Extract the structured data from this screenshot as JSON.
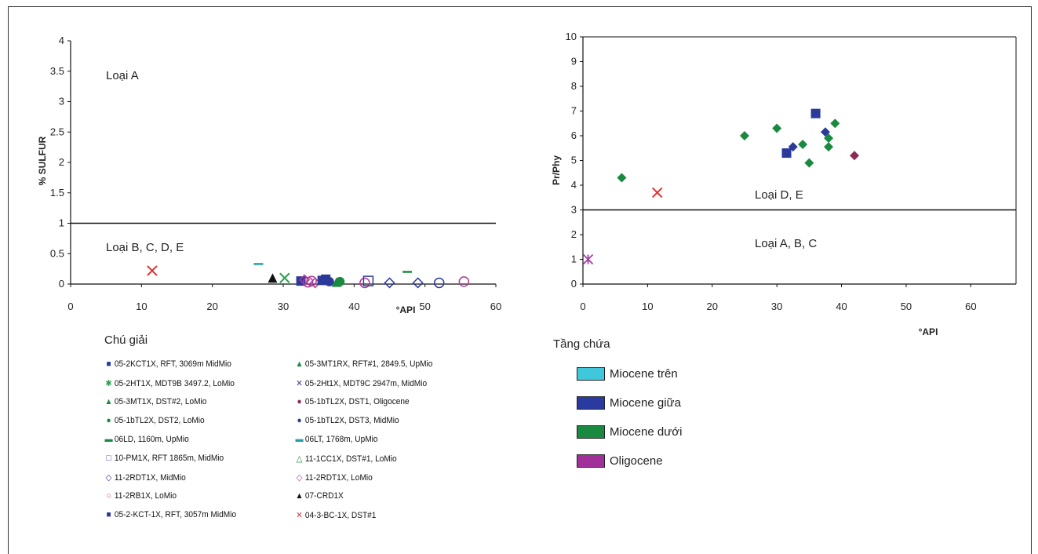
{
  "chart_data": [
    {
      "type": "scatter",
      "xlabel": "°API",
      "ylabel": "% SULFUR",
      "xlim": [
        0,
        60
      ],
      "ylim": [
        0,
        4
      ],
      "xticks": [
        "0",
        "10",
        "20",
        "30",
        "40",
        "50",
        "60"
      ],
      "yticks": [
        "0",
        "0.5",
        "1",
        "1.5",
        "2",
        "2.5",
        "3",
        "3.5",
        "4"
      ],
      "threshold": 1,
      "zones": [
        {
          "label": "Loại A"
        },
        {
          "label": "Loại B, C, D, E"
        }
      ],
      "points": [
        {
          "x": 11.5,
          "y": 0.22,
          "marker": "x",
          "color": "#e03030"
        },
        {
          "x": 26.5,
          "y": 0.33,
          "marker": "dash",
          "color": "#20a0a0"
        },
        {
          "x": 28.5,
          "y": 0.1,
          "marker": "triangle",
          "color": "#111111"
        },
        {
          "x": 30.2,
          "y": 0.1,
          "marker": "x",
          "color": "#2aa050"
        },
        {
          "x": 32.5,
          "y": 0.05,
          "marker": "square",
          "color": "#2b3a9a"
        },
        {
          "x": 33,
          "y": 0.07,
          "marker": "diamond-open",
          "color": "#b03a9a"
        },
        {
          "x": 33.5,
          "y": 0.03,
          "marker": "circle-open",
          "color": "#b03a9a"
        },
        {
          "x": 34,
          "y": 0.05,
          "marker": "circle-open",
          "color": "#b03a9a"
        },
        {
          "x": 34.5,
          "y": 0.02,
          "marker": "diamond-open",
          "color": "#b03a9a"
        },
        {
          "x": 35.5,
          "y": 0.06,
          "marker": "square",
          "color": "#2b3a9a"
        },
        {
          "x": 36,
          "y": 0.08,
          "marker": "square",
          "color": "#2b3a9a"
        },
        {
          "x": 36.5,
          "y": 0.04,
          "marker": "circle",
          "color": "#2b3a9a"
        },
        {
          "x": 37.5,
          "y": 0.03,
          "marker": "triangle",
          "color": "#1a8a40"
        },
        {
          "x": 38,
          "y": 0.04,
          "marker": "circle",
          "color": "#1a8a40"
        },
        {
          "x": 41.5,
          "y": 0.02,
          "marker": "circle-open",
          "color": "#b03a9a"
        },
        {
          "x": 42,
          "y": 0.05,
          "marker": "square-open",
          "color": "#2b3a9a"
        },
        {
          "x": 45,
          "y": 0.02,
          "marker": "diamond-open",
          "color": "#2b3a9a"
        },
        {
          "x": 47.5,
          "y": 0.2,
          "marker": "dash",
          "color": "#1a8a40"
        },
        {
          "x": 49,
          "y": 0.02,
          "marker": "diamond-open",
          "color": "#2b3a9a"
        },
        {
          "x": 52,
          "y": 0.02,
          "marker": "circle-open",
          "color": "#2b3a9a"
        },
        {
          "x": 55.5,
          "y": 0.04,
          "marker": "circle-open",
          "color": "#b03a9a"
        }
      ]
    },
    {
      "type": "scatter",
      "xlabel": "°API",
      "ylabel": "Pr/Phy",
      "xlim": [
        0,
        67
      ],
      "ylim": [
        0,
        10
      ],
      "xticks": [
        "0",
        "10",
        "20",
        "30",
        "40",
        "50",
        "60"
      ],
      "yticks": [
        "0",
        "1",
        "2",
        "3",
        "4",
        "5",
        "6",
        "7",
        "8",
        "9",
        "10"
      ],
      "threshold": 3,
      "zones": [
        {
          "label": "Loại D, E"
        },
        {
          "label": "Loại A, B, C"
        }
      ],
      "points": [
        {
          "x": 0.8,
          "y": 1.0,
          "marker": "star",
          "color": "#a040a0"
        },
        {
          "x": 6,
          "y": 4.3,
          "marker": "diamond",
          "color": "#1a8a40"
        },
        {
          "x": 11.5,
          "y": 3.7,
          "marker": "x",
          "color": "#e03030"
        },
        {
          "x": 25,
          "y": 6.0,
          "marker": "diamond",
          "color": "#1a8a40"
        },
        {
          "x": 30,
          "y": 6.3,
          "marker": "diamond",
          "color": "#1a8a40"
        },
        {
          "x": 31.5,
          "y": 5.3,
          "marker": "square",
          "color": "#2b3a9a"
        },
        {
          "x": 32.5,
          "y": 5.55,
          "marker": "diamond",
          "color": "#2b3a9a"
        },
        {
          "x": 34,
          "y": 5.65,
          "marker": "diamond",
          "color": "#1a8a40"
        },
        {
          "x": 35,
          "y": 4.9,
          "marker": "diamond",
          "color": "#1a8a40"
        },
        {
          "x": 36,
          "y": 6.9,
          "marker": "square",
          "color": "#2b3a9a"
        },
        {
          "x": 37.5,
          "y": 6.15,
          "marker": "diamond",
          "color": "#2b3a9a"
        },
        {
          "x": 38,
          "y": 5.9,
          "marker": "diamond",
          "color": "#1a8a40"
        },
        {
          "x": 38,
          "y": 5.55,
          "marker": "diamond",
          "color": "#1a8a40"
        },
        {
          "x": 39,
          "y": 6.5,
          "marker": "diamond",
          "color": "#1a8a40"
        },
        {
          "x": 42,
          "y": 5.2,
          "marker": "diamond",
          "color": "#8a2a5a"
        }
      ]
    }
  ],
  "legend_left": {
    "title": "Chú giải",
    "items": [
      {
        "label": "05-2KCT1X, RFT, 3069m MidMio",
        "sym": "■",
        "color": "#2b3a9a"
      },
      {
        "label": "05-3MT1RX, RFT#1, 2849.5, UpMio",
        "sym": "▲",
        "color": "#1a8a40"
      },
      {
        "label": "05-2HT1X, MDT9B 3497.2, LoMio",
        "sym": "✱",
        "color": "#2aa050"
      },
      {
        "label": "05-2Ht1X, MDT9C 2947m, MidMio",
        "sym": "✕",
        "color": "#2b3a9a"
      },
      {
        "label": "05-3MT1X, DST#2, LoMio",
        "sym": "▲",
        "color": "#1a8a40"
      },
      {
        "label": "05-1bTL2X, DST1, Oligocene",
        "sym": "●",
        "color": "#8a2a5a"
      },
      {
        "label": "05-1bTL2X, DST2, LoMio",
        "sym": "●",
        "color": "#1a8a40"
      },
      {
        "label": "05-1bTL2X, DST3, MidMio",
        "sym": "●",
        "color": "#2b3a9a"
      },
      {
        "label": "06LD, 1160m, UpMio",
        "sym": "▬",
        "color": "#1a8a40"
      },
      {
        "label": "06LT, 1768m, UpMio",
        "sym": "▬",
        "color": "#20a0a0"
      },
      {
        "label": "10-PM1X, RFT 1865m, MidMio",
        "sym": "□",
        "color": "#2b3a9a"
      },
      {
        "label": "11-1CC1X, DST#1, LoMio",
        "sym": "△",
        "color": "#1a8a40"
      },
      {
        "label": "11-2RDT1X, MidMio",
        "sym": "◇",
        "color": "#2b3a9a"
      },
      {
        "label": "11-2RDT1X, LoMio",
        "sym": "◇",
        "color": "#b03a9a"
      },
      {
        "label": "11-2RB1X, LoMio",
        "sym": "○",
        "color": "#b03a9a"
      },
      {
        "label": "07-CRD1X",
        "sym": "▲",
        "color": "#111111"
      },
      {
        "label": "05-2-KCT-1X, RFT, 3057m MidMio",
        "sym": "■",
        "color": "#2b3a9a"
      },
      {
        "label": "04-3-BC-1X, DST#1",
        "sym": "✕",
        "color": "#e03030"
      }
    ]
  },
  "legend_right": {
    "title": "Tầng chứa",
    "items": [
      {
        "label": "Miocene trên",
        "color": "#3fc8dc"
      },
      {
        "label": "Miocene giữa",
        "color": "#2b3aa0"
      },
      {
        "label": "Miocene dưới",
        "color": "#1a8a40"
      },
      {
        "label": "Oligocene",
        "color": "#a0309a"
      }
    ]
  }
}
